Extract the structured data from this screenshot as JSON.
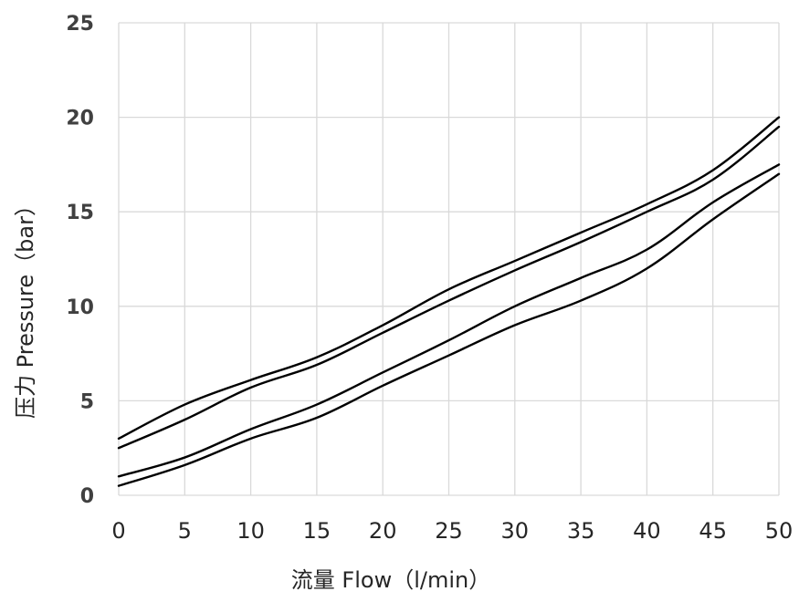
{
  "chart_data": {
    "type": "line",
    "title": "",
    "xlabel": "流量 Flow（l/min）",
    "ylabel": "压力 Pressure（bar）",
    "xlim": [
      0,
      50
    ],
    "ylim": [
      0,
      25
    ],
    "xticks": [
      "0",
      "5",
      "10",
      "15",
      "20",
      "25",
      "30",
      "35",
      "40",
      "45",
      "50"
    ],
    "yticks": [
      "0",
      "5",
      "10",
      "15",
      "20",
      "25"
    ],
    "grid": true,
    "legend": "none",
    "line_color": "#000000",
    "x": [
      0,
      5,
      10,
      15,
      20,
      25,
      30,
      35,
      40,
      45,
      50
    ],
    "series": [
      {
        "values": [
          3.0,
          4.8,
          6.1,
          7.3,
          9.0,
          10.9,
          12.4,
          13.9,
          15.4,
          17.2,
          20.0
        ]
      },
      {
        "values": [
          2.5,
          4.0,
          5.7,
          6.9,
          8.6,
          10.3,
          11.9,
          13.4,
          15.0,
          16.7,
          19.5
        ]
      },
      {
        "values": [
          1.0,
          2.0,
          3.5,
          4.8,
          6.5,
          8.2,
          10.0,
          11.5,
          13.0,
          15.5,
          17.5
        ]
      },
      {
        "values": [
          0.5,
          1.6,
          3.0,
          4.1,
          5.8,
          7.4,
          9.0,
          10.3,
          12.0,
          14.6,
          17.0
        ]
      }
    ]
  }
}
